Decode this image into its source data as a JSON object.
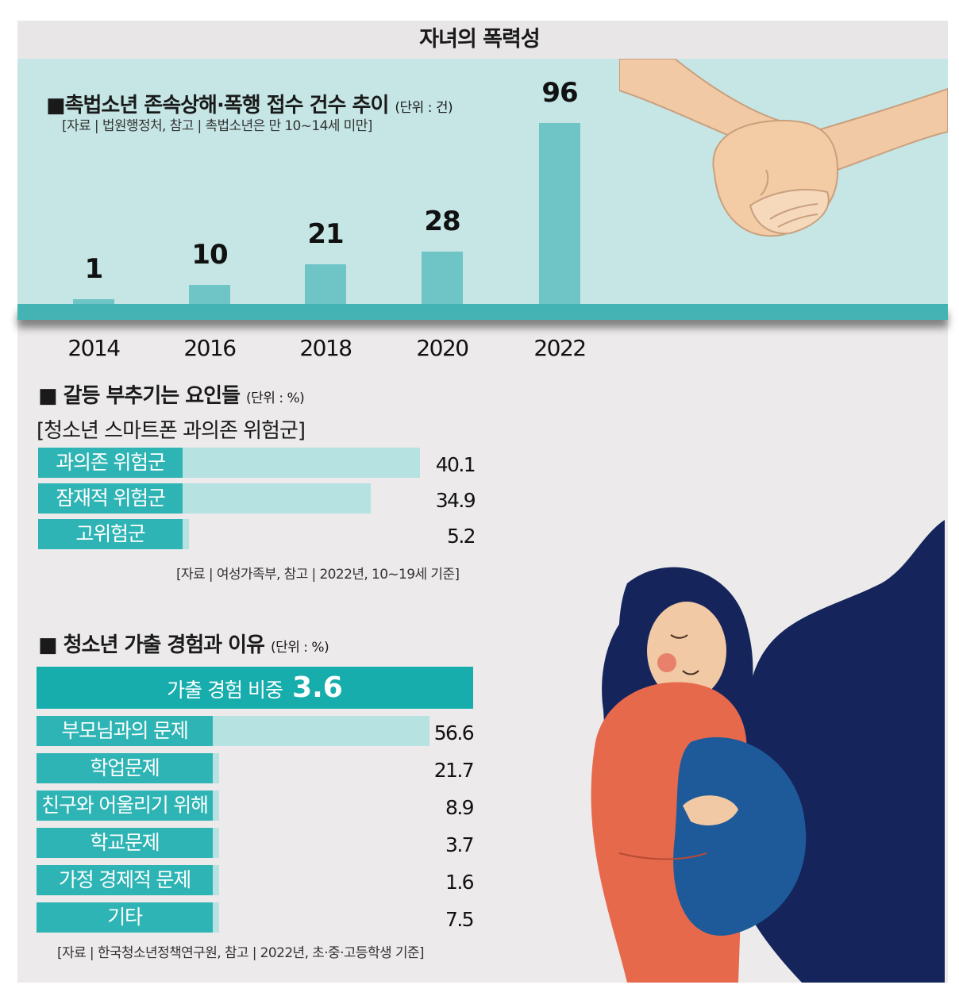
{
  "page": {
    "title": "자녀의 폭력성",
    "colors": {
      "panel": "#c6e6e6",
      "bar": "#6fc5c6",
      "baseline": "#43b3b3",
      "label_bg": "#2eb4b4",
      "bar_light": "#b6e2e2",
      "header": "#17adad"
    },
    "illustrations": [
      "holding-hands-icon",
      "mother-hugging-child-icon"
    ]
  },
  "section1": {
    "title": "■촉법소년 존속상해·폭행 접수 건수 추이",
    "unit": "(단위 : 건)",
    "source": "[자료 | 법원행정처, 참고 | 촉법소년은 만 10~14세 미만]"
  },
  "section2": {
    "title": "■ 갈등 부추기는 요인들",
    "unit": "(단위 : %)",
    "subtitle": "[청소년 스마트폰 과의존 위험군]",
    "source": "[자료 | 여성가족부, 참고 | 2022년, 10~19세 기준]"
  },
  "section3": {
    "title": "■ 청소년 가출 경험과 이유",
    "unit": "(단위 : %)",
    "header_label": "가출 경험 비중",
    "header_value": "3.6",
    "source": "[자료 | 한국청소년정책연구원, 참고 | 2022년, 초·중·고등학생 기준]"
  },
  "chart_data": [
    {
      "type": "bar",
      "title": "촉법소년 존속상해·폭행 접수 건수 추이",
      "categories": [
        "2014",
        "2016",
        "2018",
        "2020",
        "2022"
      ],
      "values": [
        1,
        10,
        21,
        28,
        96
      ],
      "value_labels": [
        "1",
        "10",
        "21",
        "28",
        "96"
      ],
      "ylabel": "(단위 : 건)",
      "ylim": [
        0,
        96
      ],
      "grid": false
    },
    {
      "type": "bar",
      "orientation": "horizontal",
      "title": "청소년 스마트폰 과의존 위험군",
      "categories": [
        "과의존 위험군",
        "잠재적 위험군",
        "고위험군"
      ],
      "values": [
        40.1,
        34.9,
        5.2
      ],
      "value_labels": [
        "40.1",
        "34.9",
        "5.2"
      ],
      "xlim": [
        0,
        50
      ],
      "grid": false
    },
    {
      "type": "bar",
      "orientation": "horizontal",
      "title": "청소년 가출 경험과 이유",
      "categories": [
        "부모님과의 문제",
        "학업문제",
        "친구와 어울리기 위해",
        "학교문제",
        "가정 경제적 문제",
        "기타"
      ],
      "values": [
        56.6,
        21.7,
        8.9,
        3.7,
        1.6,
        7.5
      ],
      "value_labels": [
        "56.6",
        "21.7",
        "8.9",
        "3.7",
        "1.6",
        "7.5"
      ],
      "xlim": [
        0,
        59
      ],
      "grid": false
    }
  ]
}
